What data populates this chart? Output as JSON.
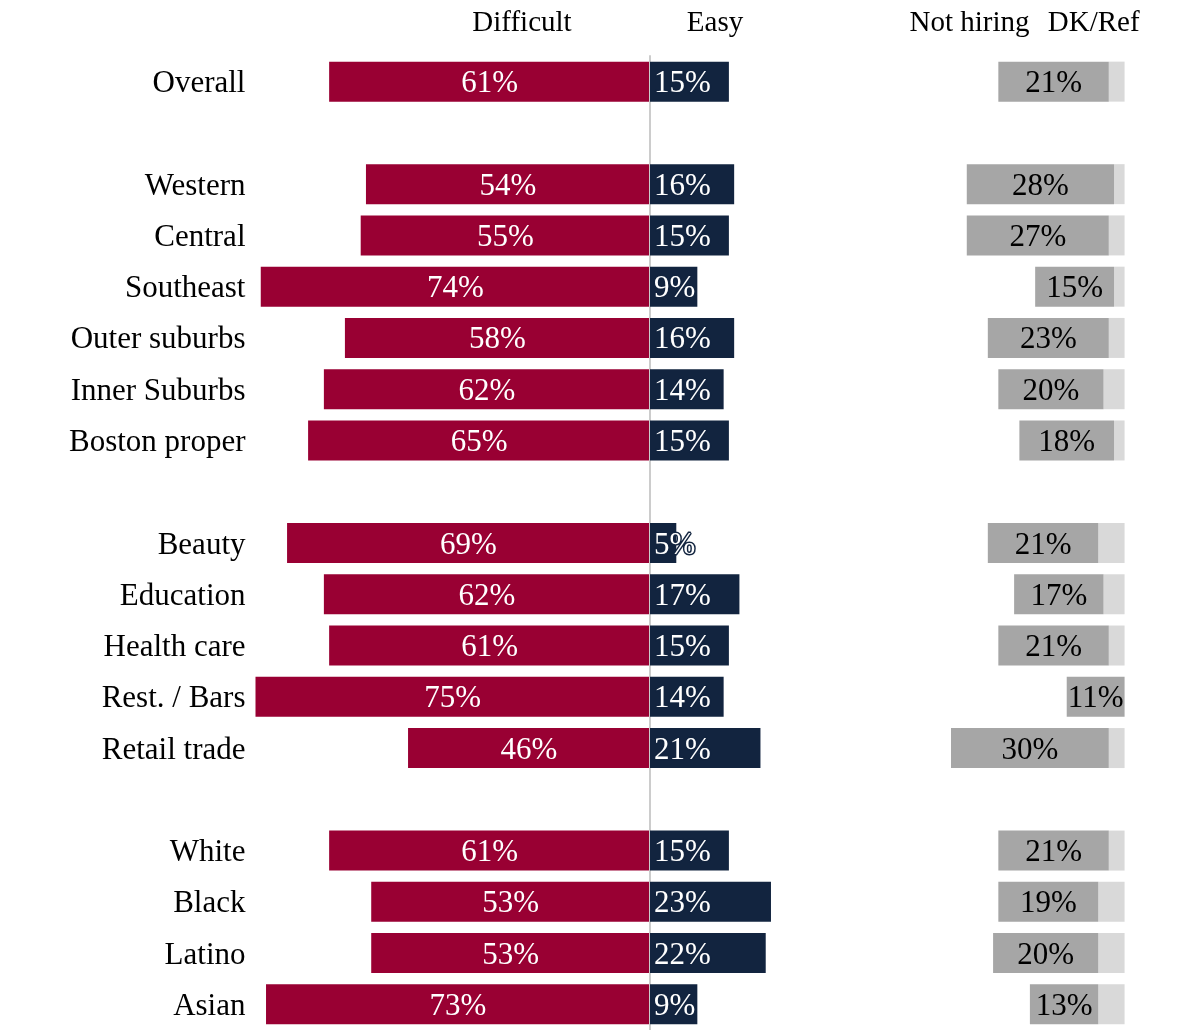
{
  "chart_data": [
    {
      "type": "bar",
      "orientation": "horizontal",
      "tick_labels": "y",
      "grid": false,
      "legend": false,
      "xlim": [
        75,
        0
      ],
      "categories": [
        "Overall",
        null,
        "Western",
        "Central",
        "Southeast",
        "Outer suburbs",
        "Inner Suburbs",
        "Boston proper",
        null,
        "Beauty",
        "Education",
        "Health care",
        "Rest. / Bars",
        "Retail trade",
        null,
        "White",
        "Black",
        "Latino",
        "Asian"
      ],
      "series": [
        {
          "name": "Difficult",
          "color": "#990033",
          "values": [
            61,
            null,
            54,
            55,
            74,
            58,
            62,
            65,
            null,
            69,
            62,
            61,
            75,
            46,
            null,
            61,
            53,
            53,
            73
          ],
          "value_labels": [
            "61%",
            null,
            "54%",
            "55%",
            "74%",
            "58%",
            "62%",
            "65%",
            null,
            "69%",
            "62%",
            "61%",
            "75%",
            "46%",
            null,
            "61%",
            "53%",
            "53%",
            "73%"
          ]
        }
      ]
    },
    {
      "type": "bar",
      "orientation": "horizontal",
      "tick_labels": false,
      "grid": false,
      "legend": false,
      "xlim": [
        0,
        23
      ],
      "categories": [
        null,
        null,
        null,
        null,
        null,
        null,
        null,
        null,
        null,
        null,
        null,
        null,
        null,
        null,
        null,
        null,
        null,
        null,
        null
      ],
      "series": [
        {
          "name": "Easy",
          "color": "#12243f",
          "values": [
            15,
            null,
            16,
            15,
            9,
            16,
            14,
            15,
            null,
            5,
            17,
            15,
            14,
            21,
            null,
            15,
            23,
            22,
            9
          ],
          "value_labels": [
            "15%",
            null,
            "16%",
            "15%",
            "9%",
            "16%",
            "14%",
            "15%",
            null,
            "5%",
            "17%",
            "15%",
            "14%",
            "21%",
            null,
            "15%",
            "23%",
            "22%",
            "9%"
          ]
        }
      ]
    },
    {
      "type": "bar",
      "orientation": "horizontal",
      "stacked": true,
      "tick_labels": false,
      "grid": false,
      "legend": false,
      "xlim": [
        33,
        0
      ],
      "categories": [
        null,
        null,
        null,
        null,
        null,
        null,
        null,
        null,
        null,
        null,
        null,
        null,
        null,
        null,
        null,
        null,
        null,
        null,
        null
      ],
      "series": [
        {
          "name": "DK/Ref",
          "color": "#d9d9d9",
          "values": [
            3,
            null,
            2,
            3,
            2,
            3,
            4,
            2,
            null,
            5,
            4,
            3,
            0,
            3,
            null,
            3,
            5,
            5,
            5
          ]
        },
        {
          "name": "Not hiring",
          "color": "#a6a6a6",
          "values": [
            21,
            null,
            28,
            27,
            15,
            23,
            20,
            18,
            null,
            21,
            17,
            21,
            11,
            30,
            null,
            21,
            19,
            20,
            13
          ],
          "value_labels": [
            "21%",
            null,
            "28%",
            "27%",
            "15%",
            "23%",
            "20%",
            "18%",
            null,
            "21%",
            "17%",
            "21%",
            "11%",
            "30%",
            null,
            "21%",
            "19%",
            "20%",
            "13%"
          ]
        }
      ]
    }
  ]
}
